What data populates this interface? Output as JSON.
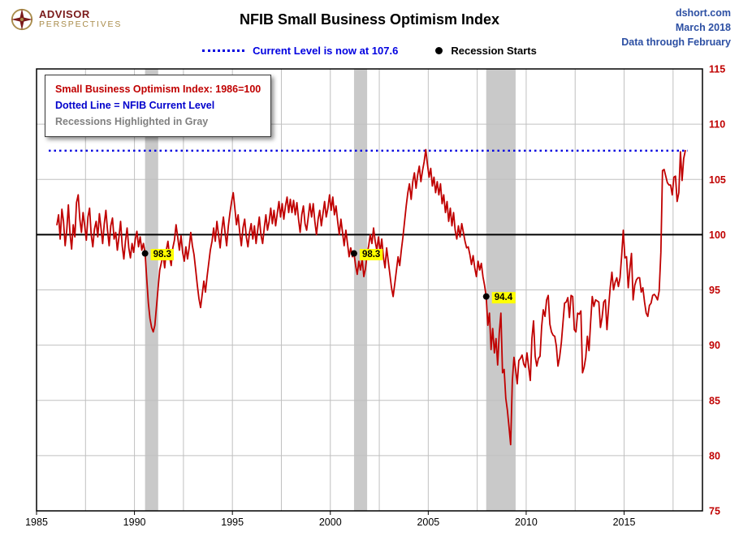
{
  "header": {
    "logo_line1": "ADVISOR",
    "logo_line2": "PERSPECTIVES",
    "title": "NFIB Small Business Optimism Index",
    "source_line1": "dshort.com",
    "source_line2": "March 2018",
    "source_line3": "Data through February"
  },
  "annotations": {
    "current_level_label": "Current Level is now at 107.6",
    "recession_starts_label": "Recession Starts"
  },
  "legend_box": {
    "line1": "Small Business Optimism Index: 1986=100",
    "line2": "Dotted Line = NFIB Current Level",
    "line3": "Recessions Highlighted in Gray"
  },
  "colors": {
    "series": "#c00000",
    "current_level": "#0000e0",
    "baseline": "#000000",
    "recession_band": "#c9c9c9",
    "grid": "#c0c0c0",
    "frame": "#000000",
    "y_label": "#c00000",
    "x_label": "#000000",
    "marker_dot": "#000000",
    "marker_label_bg": "#ffff00",
    "marker_label_text": "#000000"
  },
  "chart_data": {
    "type": "line",
    "title": "NFIB Small Business Optimism Index",
    "ylabel": "",
    "xlabel": "",
    "ylim": [
      75,
      115
    ],
    "xlim": [
      1985,
      2019
    ],
    "y_ticks": [
      75,
      80,
      85,
      90,
      95,
      100,
      105,
      110,
      115
    ],
    "x_ticks": [
      1985,
      1990,
      1995,
      2000,
      2005,
      2010,
      2015
    ],
    "x_grid_interval": 2.5,
    "grid": true,
    "baseline": 100,
    "current_level": 107.6,
    "series_name": "Small Business Optimism Index (1986=100)",
    "recessions": [
      {
        "start": 1990.54,
        "end": 1991.21
      },
      {
        "start": 2001.21,
        "end": 2001.88
      },
      {
        "start": 2007.96,
        "end": 2009.46
      }
    ],
    "recession_start_markers": [
      {
        "x": 1990.54,
        "value": 98.3,
        "label": "98.3"
      },
      {
        "x": 2001.21,
        "value": 98.3,
        "label": "98.3"
      },
      {
        "x": 2007.96,
        "value": 94.4,
        "label": "94.4"
      }
    ],
    "values_monthly": {
      "1986": [
        100.9,
        101.8,
        99.6,
        102.3,
        101.2,
        99.0,
        100.4,
        102.7,
        100.1,
        98.7,
        100.9,
        99.8
      ],
      "1987": [
        102.9,
        103.6,
        101.4,
        100.2,
        102.0,
        100.8,
        99.5,
        101.6,
        102.4,
        100.0,
        98.9,
        100.5
      ],
      "1988": [
        101.2,
        99.8,
        101.9,
        100.6,
        99.2,
        101.0,
        102.2,
        100.4,
        99.0,
        100.8,
        101.5,
        99.6
      ],
      "1989": [
        100.2,
        98.6,
        99.8,
        101.2,
        99.0,
        97.8,
        99.4,
        100.6,
        98.8,
        97.9,
        99.2,
        98.4
      ],
      "1990": [
        99.6,
        100.3,
        98.9,
        99.8,
        98.6,
        99.2,
        98.3,
        96.0,
        93.8,
        92.4,
        91.6,
        91.2
      ],
      "1991": [
        91.8,
        93.5,
        95.2,
        96.8,
        97.5,
        98.2,
        97.0,
        98.6,
        99.4,
        98.0,
        97.2,
        98.8
      ],
      "1992": [
        99.5,
        100.9,
        99.8,
        98.6,
        99.9,
        98.4,
        97.6,
        98.9,
        97.8,
        98.8,
        100.2,
        99.0
      ],
      "1993": [
        98.2,
        96.8,
        95.4,
        94.2,
        93.4,
        94.6,
        95.8,
        94.8,
        96.2,
        97.4,
        98.6,
        99.4
      ],
      "1994": [
        100.6,
        99.4,
        101.2,
        100.0,
        98.8,
        100.4,
        101.6,
        100.2,
        99.0,
        100.8,
        102.0,
        103.0
      ],
      "1995": [
        103.8,
        102.4,
        100.9,
        101.8,
        100.2,
        99.0,
        100.6,
        101.4,
        99.8,
        98.9,
        100.2,
        101.0
      ],
      "1996": [
        99.6,
        100.8,
        99.2,
        100.4,
        101.6,
        100.0,
        99.2,
        100.6,
        101.8,
        100.4,
        101.2,
        102.4
      ],
      "1997": [
        101.0,
        102.2,
        100.8,
        101.9,
        103.0,
        101.6,
        102.8,
        101.4,
        102.6,
        103.4,
        102.0,
        103.2
      ],
      "1998": [
        102.0,
        103.1,
        101.8,
        102.9,
        101.4,
        100.2,
        101.8,
        102.6,
        101.0,
        100.4,
        101.6,
        102.8
      ],
      "1999": [
        101.6,
        102.8,
        101.2,
        100.0,
        101.4,
        102.2,
        100.8,
        101.9,
        103.0,
        101.6,
        102.4,
        103.6
      ],
      "2000": [
        102.2,
        103.4,
        101.8,
        102.6,
        101.2,
        100.0,
        101.4,
        100.2,
        99.0,
        100.4,
        99.2,
        98.0
      ],
      "2001": [
        98.8,
        98.0,
        98.3,
        97.2,
        96.4,
        97.6,
        96.8,
        97.8,
        96.2,
        96.9,
        98.2,
        99.0
      ],
      "2002": [
        100.0,
        99.2,
        100.6,
        99.4,
        98.6,
        99.8,
        98.4,
        99.6,
        98.0,
        97.0,
        98.8,
        97.6
      ],
      "2003": [
        96.4,
        95.2,
        94.4,
        95.6,
        96.8,
        98.0,
        97.2,
        98.6,
        99.8,
        101.2,
        102.6,
        103.8
      ],
      "2004": [
        104.6,
        103.2,
        104.8,
        105.6,
        104.2,
        105.4,
        106.2,
        104.8,
        105.8,
        106.6,
        107.7,
        106.4
      ],
      "2005": [
        105.2,
        106.0,
        104.4,
        105.2,
        103.8,
        104.8,
        103.6,
        104.6,
        102.8,
        103.6,
        102.0,
        103.0
      ],
      "2006": [
        101.2,
        102.4,
        100.8,
        102.0,
        100.4,
        99.6,
        100.8,
        99.8,
        101.0,
        100.2,
        99.4,
        98.8
      ],
      "2007": [
        98.9,
        98.2,
        97.3,
        98.1,
        97.0,
        96.2,
        97.6,
        96.8,
        97.4,
        96.2,
        95.4,
        94.4
      ],
      "2008": [
        91.8,
        92.9,
        89.6,
        91.5,
        89.3,
        90.6,
        88.2,
        91.1,
        92.9,
        87.5,
        87.8,
        85.2
      ],
      "2009": [
        84.1,
        82.6,
        81.0,
        86.8,
        88.9,
        87.8,
        86.5,
        88.6,
        88.8,
        89.1,
        88.3,
        88.0
      ],
      "2010": [
        89.3,
        88.0,
        86.8,
        90.6,
        92.2,
        89.0,
        88.1,
        88.8,
        89.0,
        91.7,
        93.2,
        92.6
      ],
      "2011": [
        94.1,
        94.5,
        91.9,
        91.2,
        90.9,
        90.8,
        89.9,
        88.1,
        88.9,
        90.2,
        92.0,
        93.8
      ],
      "2012": [
        93.9,
        94.3,
        92.5,
        94.5,
        94.4,
        91.4,
        91.2,
        92.9,
        92.8,
        93.1,
        87.5,
        88.0
      ],
      "2013": [
        88.9,
        90.8,
        89.5,
        92.1,
        94.4,
        93.5,
        94.1,
        94.0,
        93.9,
        91.6,
        92.5,
        93.9
      ],
      "2014": [
        94.1,
        91.4,
        93.4,
        95.2,
        96.6,
        95.0,
        95.7,
        96.1,
        95.3,
        96.1,
        98.1,
        100.4
      ],
      "2015": [
        97.9,
        98.0,
        95.2,
        96.9,
        98.3,
        94.1,
        95.4,
        95.9,
        96.1,
        96.1,
        94.8,
        95.2
      ],
      "2016": [
        93.9,
        92.9,
        92.6,
        93.6,
        93.8,
        94.5,
        94.6,
        94.4,
        94.1,
        94.9,
        98.4,
        105.8
      ],
      "2017": [
        105.9,
        105.3,
        104.7,
        104.5,
        104.5,
        103.6,
        105.2,
        105.3,
        103.0,
        103.8,
        107.5,
        104.9
      ],
      "2018": [
        106.9,
        107.6
      ]
    }
  }
}
